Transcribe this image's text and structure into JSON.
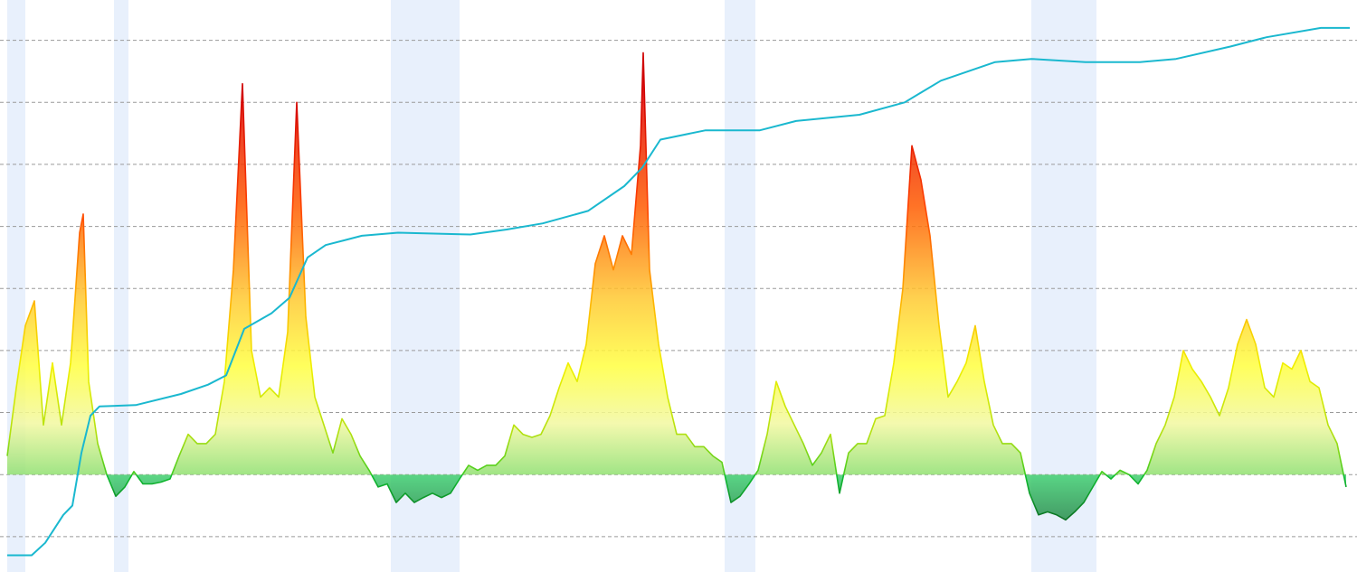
{
  "chart_data": {
    "type": "area",
    "xlim": [
      0,
      1500
    ],
    "ylim": [
      -1.57,
      7.65
    ],
    "yticks": [
      -1,
      0,
      1,
      2,
      3,
      4,
      5,
      6,
      7
    ],
    "grid": true,
    "shaded_ranges": [
      [
        8,
        28
      ],
      [
        126,
        142
      ],
      [
        432,
        508
      ],
      [
        801,
        835
      ],
      [
        1140,
        1212
      ]
    ],
    "shade_color": "#e8f0fc",
    "series": [
      {
        "color": "gradient",
        "x": [
          8,
          18,
          28,
          38,
          48,
          58,
          68,
          78,
          88,
          92,
          98,
          108,
          118,
          128,
          138,
          148,
          158,
          168,
          178,
          188,
          198,
          208,
          218,
          228,
          238,
          248,
          258,
          268,
          278,
          288,
          298,
          308,
          318,
          328,
          338,
          348,
          358,
          368,
          378,
          388,
          398,
          408,
          418,
          428,
          438,
          448,
          458,
          468,
          478,
          488,
          498,
          508,
          518,
          528,
          538,
          548,
          558,
          568,
          578,
          588,
          598,
          608,
          618,
          628,
          638,
          648,
          658,
          668,
          678,
          688,
          698,
          708,
          711,
          718,
          728,
          738,
          748,
          758,
          768,
          778,
          788,
          798,
          808,
          818,
          828,
          838,
          848,
          858,
          868,
          878,
          888,
          898,
          908,
          918,
          928,
          938,
          948,
          958,
          968,
          978,
          988,
          998,
          1008,
          1018,
          1028,
          1038,
          1048,
          1058,
          1068,
          1078,
          1088,
          1098,
          1108,
          1118,
          1128,
          1138,
          1148,
          1158,
          1168,
          1178,
          1188,
          1198,
          1208,
          1218,
          1228,
          1238,
          1248,
          1258,
          1268,
          1278,
          1288,
          1298,
          1308,
          1318,
          1328,
          1338,
          1348,
          1358,
          1368,
          1378,
          1388,
          1398,
          1408,
          1418,
          1428,
          1438,
          1448,
          1458,
          1468,
          1478,
          1488
        ],
        "values": [
          0.3,
          1.4,
          2.4,
          2.8,
          0.8,
          1.8,
          0.8,
          1.8,
          3.9,
          4.2,
          1.5,
          0.5,
          0,
          -0.35,
          -0.2,
          0.05,
          -0.15,
          -0.15,
          -0.12,
          -0.07,
          0.3,
          0.65,
          0.5,
          0.5,
          0.65,
          1.5,
          3.3,
          6.3,
          2.0,
          1.25,
          1.4,
          1.25,
          2.3,
          6.0,
          2.55,
          1.25,
          0.8,
          0.35,
          0.9,
          0.65,
          0.3,
          0.07,
          -0.2,
          -0.15,
          -0.45,
          -0.3,
          -0.45,
          -0.37,
          -0.3,
          -0.37,
          -0.3,
          -0.07,
          0.15,
          0.07,
          0.15,
          0.15,
          0.3,
          0.8,
          0.65,
          0.6,
          0.65,
          0.95,
          1.4,
          1.8,
          1.5,
          2.1,
          3.4,
          3.85,
          3.3,
          3.85,
          3.55,
          5.3,
          6.8,
          3.3,
          2.1,
          1.25,
          0.65,
          0.65,
          0.45,
          0.45,
          0.3,
          0.2,
          -0.45,
          -0.35,
          -0.15,
          0.07,
          0.65,
          1.5,
          1.1,
          0.8,
          0.5,
          0.15,
          0.35,
          0.65,
          -0.3,
          0.35,
          0.5,
          0.5,
          0.9,
          0.95,
          1.8,
          3.0,
          5.3,
          4.75,
          3.85,
          2.4,
          1.25,
          1.5,
          1.8,
          2.4,
          1.5,
          0.8,
          0.5,
          0.5,
          0.35,
          -0.3,
          -0.65,
          -0.6,
          -0.65,
          -0.73,
          -0.6,
          -0.45,
          -0.2,
          0.05,
          -0.07,
          0.07,
          0,
          -0.15,
          0.07,
          0.5,
          0.8,
          1.25,
          2.0,
          1.7,
          1.5,
          1.25,
          0.95,
          1.4,
          2.1,
          2.5,
          2.1,
          1.4,
          1.25,
          1.8,
          1.7,
          2.0,
          1.5,
          1.4,
          0.8,
          0.5,
          -0.2
        ]
      },
      {
        "color": "#1ab8cf",
        "x": [
          8,
          35,
          50,
          70,
          80,
          90,
          100,
          110,
          150,
          200,
          230,
          250,
          270,
          300,
          320,
          340,
          360,
          400,
          440,
          520,
          560,
          600,
          650,
          690,
          710,
          730,
          780,
          840,
          880,
          950,
          1000,
          1040,
          1100,
          1140,
          1200,
          1260,
          1300,
          1360,
          1400,
          1460,
          1492
        ],
        "values": [
          -1.3,
          -1.3,
          -1.1,
          -0.65,
          -0.5,
          0.35,
          0.95,
          1.1,
          1.12,
          1.3,
          1.45,
          1.6,
          2.35,
          2.6,
          2.85,
          3.5,
          3.7,
          3.85,
          3.9,
          3.87,
          3.95,
          4.05,
          4.25,
          4.65,
          4.95,
          5.4,
          5.55,
          5.55,
          5.7,
          5.8,
          6.0,
          6.35,
          6.65,
          6.7,
          6.65,
          6.65,
          6.7,
          6.9,
          7.05,
          7.2,
          7.2
        ]
      }
    ]
  }
}
